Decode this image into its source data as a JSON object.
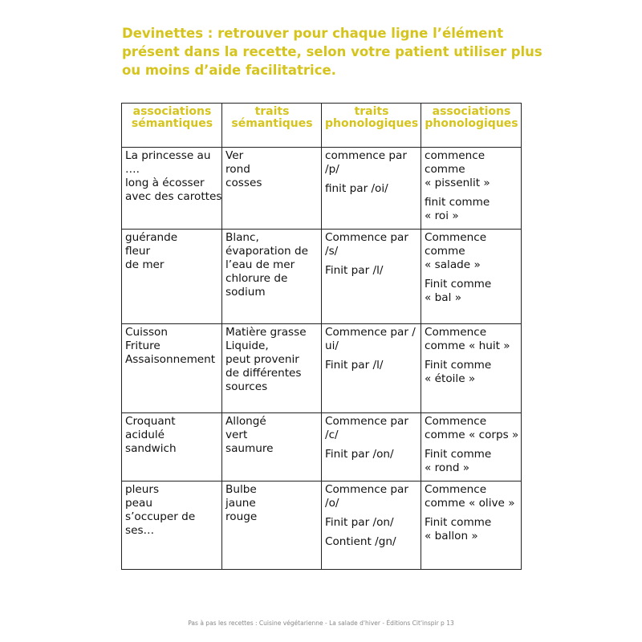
{
  "title_lines": [
    "Devinettes : retrouver pour chaque ligne l’élément",
    "présent dans la recette, selon votre patient utiliser plus",
    "ou moins d’aide facilitatrice."
  ],
  "colors": {
    "accent": "#d6c41e",
    "text": "#111111",
    "border": "#222222"
  },
  "table": {
    "headers": [
      [
        "associations",
        "sémantiques"
      ],
      [
        "traits",
        "sémantiques"
      ],
      [
        "traits",
        "phonologiques"
      ],
      [
        "associations",
        "phonologiques"
      ]
    ],
    "rows": [
      [
        [
          [
            "La princesse au",
            "….",
            "long à écosser",
            "avec des carottes"
          ]
        ],
        [
          [
            "Ver",
            "rond",
            "cosses"
          ]
        ],
        [
          [
            "commence par",
            "/p/"
          ],
          [
            "finit par /oi/"
          ]
        ],
        [
          [
            "commence",
            "comme",
            "« pissenlit »"
          ],
          [
            "finit comme",
            "« roi »"
          ]
        ]
      ],
      [
        [
          [
            "guérande",
            "fleur",
            "de mer"
          ]
        ],
        [
          [
            "Blanc,",
            "évaporation de",
            "l’eau de mer",
            "chlorure de",
            "sodium"
          ]
        ],
        [
          [
            "Commence par",
            "/s/"
          ],
          [
            "Finit par /l/"
          ]
        ],
        [
          [
            "Commence",
            "comme",
            "« salade »"
          ],
          [
            "Finit comme",
            "« bal »"
          ]
        ]
      ],
      [
        [
          [
            "Cuisson",
            "Friture",
            "Assaisonnement"
          ]
        ],
        [
          [
            "Matière grasse",
            "Liquide,",
            "peut provenir",
            "de différentes",
            "sources"
          ]
        ],
        [
          [
            "Commence par /",
            "ui/"
          ],
          [
            "Finit par /l/"
          ]
        ],
        [
          [
            "Commence",
            "comme « huit »"
          ],
          [
            "Finit comme",
            "« étoile »"
          ]
        ]
      ],
      [
        [
          [
            "Croquant",
            "acidulé",
            "sandwich"
          ]
        ],
        [
          [
            "Allongé",
            "vert",
            "saumure"
          ]
        ],
        [
          [
            "Commence par",
            "/c/"
          ],
          [
            "Finit par /on/"
          ]
        ],
        [
          [
            "Commence",
            "comme « corps »"
          ],
          [
            "Finit comme",
            "« rond »"
          ]
        ]
      ],
      [
        [
          [
            "pleurs",
            "peau",
            "s’occuper de",
            "ses…"
          ]
        ],
        [
          [
            "Bulbe",
            "jaune",
            "rouge"
          ]
        ],
        [
          [
            "Commence par",
            "/o/"
          ],
          [
            "Finit par /on/"
          ],
          [
            "Contient /gn/"
          ]
        ],
        [
          [
            "Commence",
            "comme « olive »"
          ],
          [
            "Finit comme",
            "« ballon »"
          ]
        ]
      ]
    ]
  },
  "footer": "Pas à pas les recettes : Cuisine végétarienne - La salade d'hiver - Éditions Cit'inspir p 13"
}
